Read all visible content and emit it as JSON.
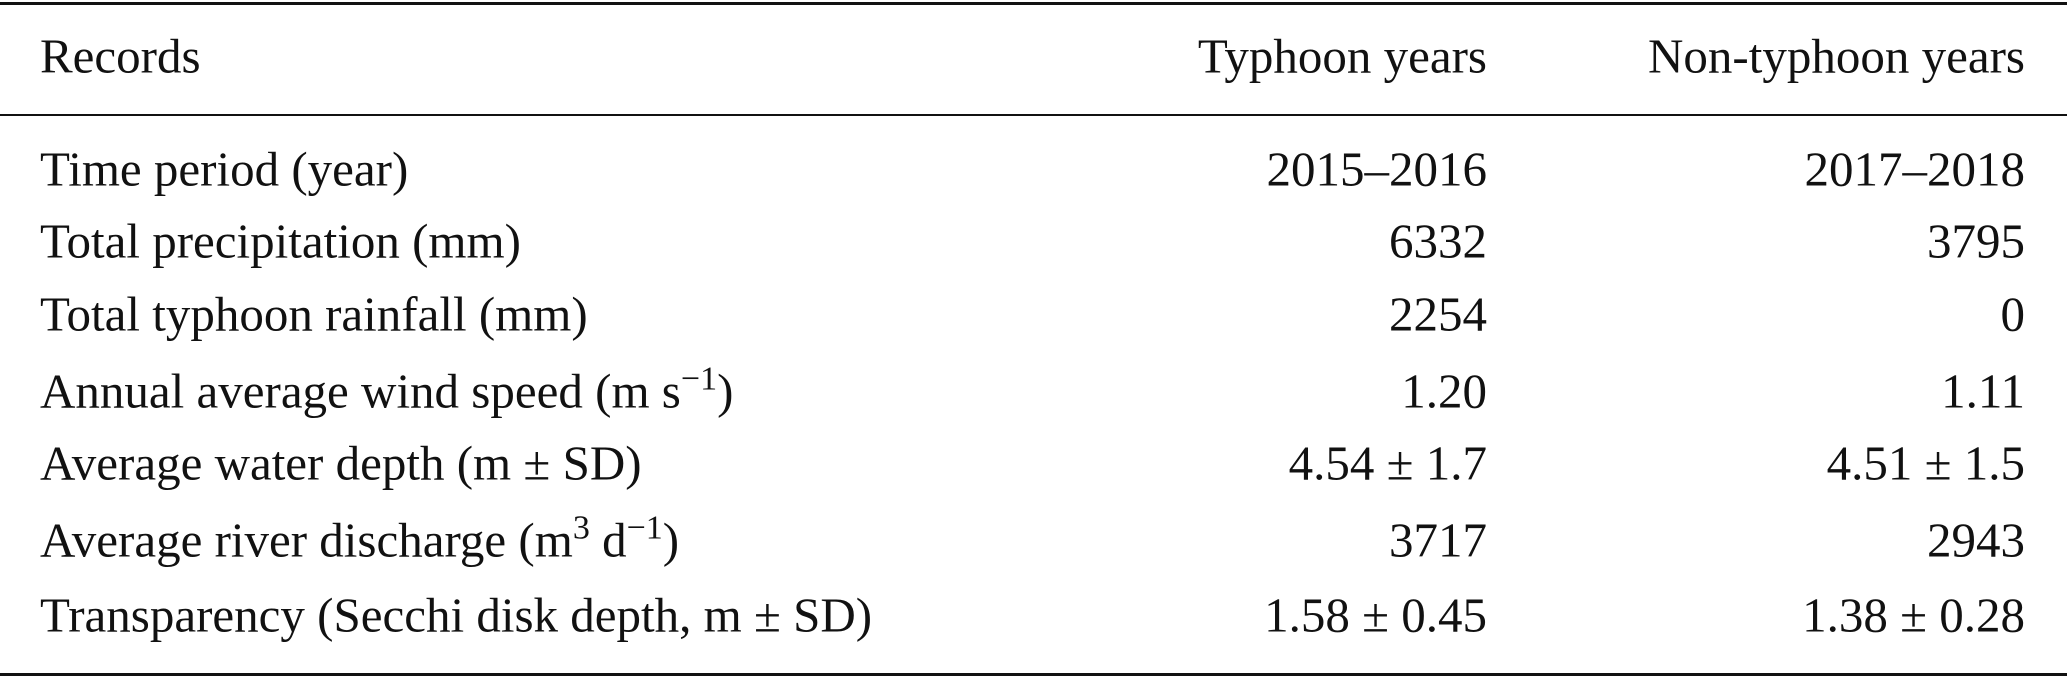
{
  "table": {
    "header": [
      "Records",
      "Typhoon years",
      "Non-typhoon years"
    ],
    "rows": [
      {
        "label": [
          {
            "text": "Time period (year)"
          }
        ],
        "cells": [
          "2015–2016",
          "2017–2018"
        ]
      },
      {
        "label": [
          {
            "text": "Total precipitation (mm)"
          }
        ],
        "cells": [
          "6332",
          "3795"
        ]
      },
      {
        "label": [
          {
            "text": "Total typhoon rainfall (mm)"
          }
        ],
        "cells": [
          "2254",
          "0"
        ]
      },
      {
        "label": [
          {
            "text": "Annual average wind speed (m s"
          },
          {
            "sup": "−1"
          },
          {
            "text": ")"
          }
        ],
        "cells": [
          "1.20",
          "1.11"
        ]
      },
      {
        "label": [
          {
            "text": "Average water depth (m ± SD)"
          }
        ],
        "cells": [
          "4.54 ± 1.7",
          "4.51 ± 1.5"
        ]
      },
      {
        "label": [
          {
            "text": "Average river discharge (m"
          },
          {
            "sup": "3"
          },
          {
            "text": " d"
          },
          {
            "sup": "−1"
          },
          {
            "text": ")"
          }
        ],
        "cells": [
          "3717",
          "2943"
        ]
      },
      {
        "label": [
          {
            "text": "Transparency (Secchi disk depth, m ± SD)"
          }
        ],
        "cells": [
          "1.58 ± 0.45",
          "1.38 ± 0.28"
        ]
      }
    ]
  }
}
